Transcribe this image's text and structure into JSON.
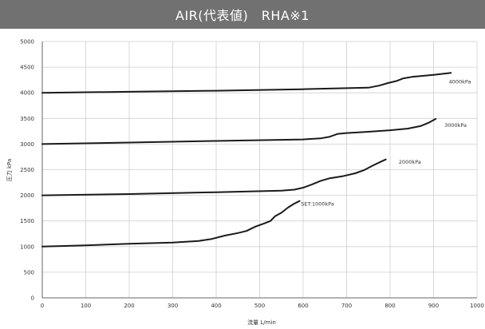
{
  "title": "AIR(代表値)　RHA※1",
  "chart_data": {
    "type": "line",
    "xlabel": "流量 L/min",
    "ylabel": "圧力 kPa",
    "xlim": [
      0,
      1000
    ],
    "ylim": [
      0,
      5000
    ],
    "x_ticks": [
      0,
      100,
      200,
      300,
      400,
      500,
      600,
      700,
      800,
      900,
      1000
    ],
    "y_ticks": [
      0,
      500,
      1000,
      1500,
      2000,
      2500,
      3000,
      3500,
      4000,
      4500,
      5000
    ],
    "grid": true,
    "series": [
      {
        "name": "SET:1000kPa",
        "label_at": [
          595,
          1800
        ],
        "points": [
          [
            0,
            1000
          ],
          [
            100,
            1025
          ],
          [
            200,
            1055
          ],
          [
            300,
            1080
          ],
          [
            360,
            1110
          ],
          [
            390,
            1150
          ],
          [
            420,
            1215
          ],
          [
            450,
            1265
          ],
          [
            470,
            1305
          ],
          [
            490,
            1390
          ],
          [
            510,
            1450
          ],
          [
            525,
            1500
          ],
          [
            535,
            1590
          ],
          [
            550,
            1660
          ],
          [
            565,
            1760
          ],
          [
            580,
            1840
          ],
          [
            592,
            1890
          ]
        ]
      },
      {
        "name": "2000kPa",
        "label_at": [
          820,
          2620
        ],
        "points": [
          [
            0,
            2000
          ],
          [
            200,
            2025
          ],
          [
            400,
            2060
          ],
          [
            550,
            2090
          ],
          [
            580,
            2110
          ],
          [
            600,
            2150
          ],
          [
            620,
            2210
          ],
          [
            640,
            2280
          ],
          [
            660,
            2330
          ],
          [
            690,
            2370
          ],
          [
            720,
            2430
          ],
          [
            740,
            2490
          ],
          [
            760,
            2580
          ],
          [
            780,
            2660
          ],
          [
            790,
            2700
          ]
        ]
      },
      {
        "name": "3000kPa",
        "label_at": [
          925,
          3330
        ],
        "points": [
          [
            0,
            3000
          ],
          [
            200,
            3030
          ],
          [
            400,
            3060
          ],
          [
            600,
            3090
          ],
          [
            640,
            3110
          ],
          [
            660,
            3140
          ],
          [
            680,
            3200
          ],
          [
            700,
            3215
          ],
          [
            750,
            3240
          ],
          [
            800,
            3270
          ],
          [
            840,
            3300
          ],
          [
            870,
            3350
          ],
          [
            890,
            3420
          ],
          [
            905,
            3490
          ]
        ]
      },
      {
        "name": "4000kPa",
        "label_at": [
          935,
          4180
        ],
        "points": [
          [
            0,
            4000
          ],
          [
            200,
            4020
          ],
          [
            400,
            4040
          ],
          [
            600,
            4070
          ],
          [
            750,
            4100
          ],
          [
            775,
            4140
          ],
          [
            795,
            4190
          ],
          [
            815,
            4230
          ],
          [
            830,
            4280
          ],
          [
            850,
            4310
          ],
          [
            900,
            4350
          ],
          [
            940,
            4390
          ]
        ]
      }
    ]
  },
  "colors": {
    "title_bar": "#717171",
    "title_text": "#ffffff",
    "grid": "#cfcfcf",
    "axis": "#666666",
    "line": "#1a1a1a"
  }
}
